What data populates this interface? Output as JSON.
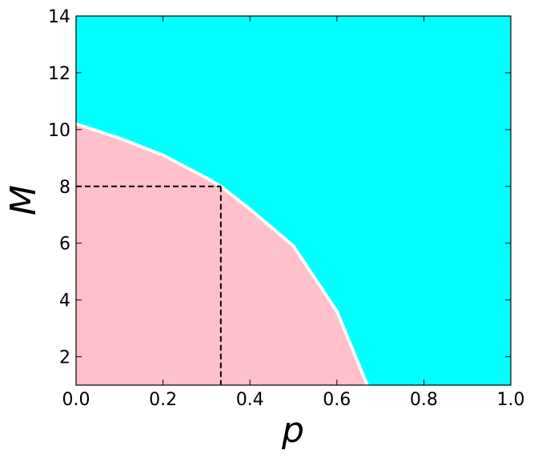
{
  "chart_data": {
    "type": "area",
    "xlabel": "p",
    "ylabel": "M",
    "x": [
      0,
      0.1,
      0.2,
      0.3,
      0.333,
      0.4,
      0.5,
      0.6,
      0.67
    ],
    "values": [
      10.2,
      9.7,
      9.1,
      8.3,
      8.0,
      7.2,
      5.9,
      3.6,
      1.0
    ],
    "line_color": "#ffffff",
    "below_color": "#ffc0cb",
    "above_color": "#00ffff",
    "marker": {
      "x": 0.333,
      "y": 8
    },
    "xlim": [
      0,
      1
    ],
    "ylim": [
      1,
      14
    ],
    "xticks": [
      {
        "value": 0,
        "label": "0.0"
      },
      0.2,
      0.4,
      0.6,
      0.8,
      {
        "value": 1,
        "label": "1.0"
      }
    ],
    "yticks": [
      2,
      4,
      6,
      8,
      10,
      12,
      14
    ]
  }
}
